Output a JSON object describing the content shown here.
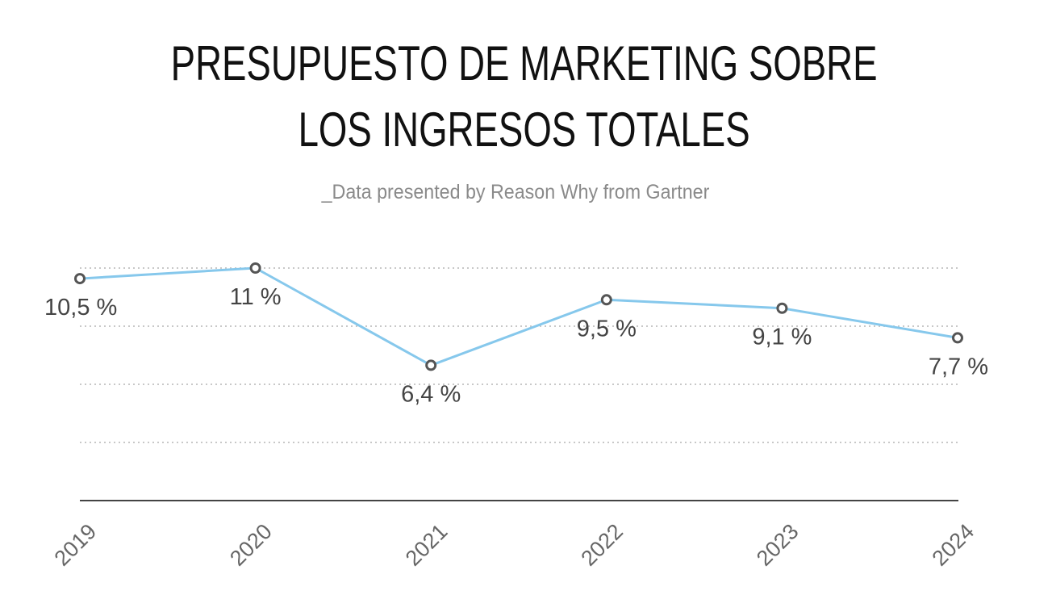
{
  "header": {
    "title_line1": "PRESUPUESTO DE MARKETING SOBRE",
    "title_line2": "LOS INGRESOS TOTALES",
    "subtitle": "_Data presented by Reason Why from Gartner"
  },
  "colors": {
    "line": "#86c8ec",
    "marker_stroke": "#555555",
    "grid": "#c8c8c8",
    "axis": "#444444"
  },
  "chart_data": {
    "type": "line",
    "title": "PRESUPUESTO DE MARKETING SOBRE LOS INGRESOS TOTALES",
    "subtitle": "_Data presented by Reason Why from Gartner",
    "xlabel": "",
    "ylabel": "",
    "categories": [
      "2019",
      "2020",
      "2021",
      "2022",
      "2023",
      "2024"
    ],
    "series": [
      {
        "values": [
          10.5,
          11,
          6.4,
          9.5,
          9.1,
          7.7
        ],
        "labels": [
          "10,5 %",
          "11 %",
          "6,4 %",
          "9,5 %",
          "9,1 %",
          "7,7 %"
        ]
      }
    ],
    "ylim": [
      0,
      11
    ],
    "gridlines": [
      2.75,
      5.5,
      8.25,
      11
    ],
    "grid": "dotted horizontal",
    "legend": "none"
  }
}
